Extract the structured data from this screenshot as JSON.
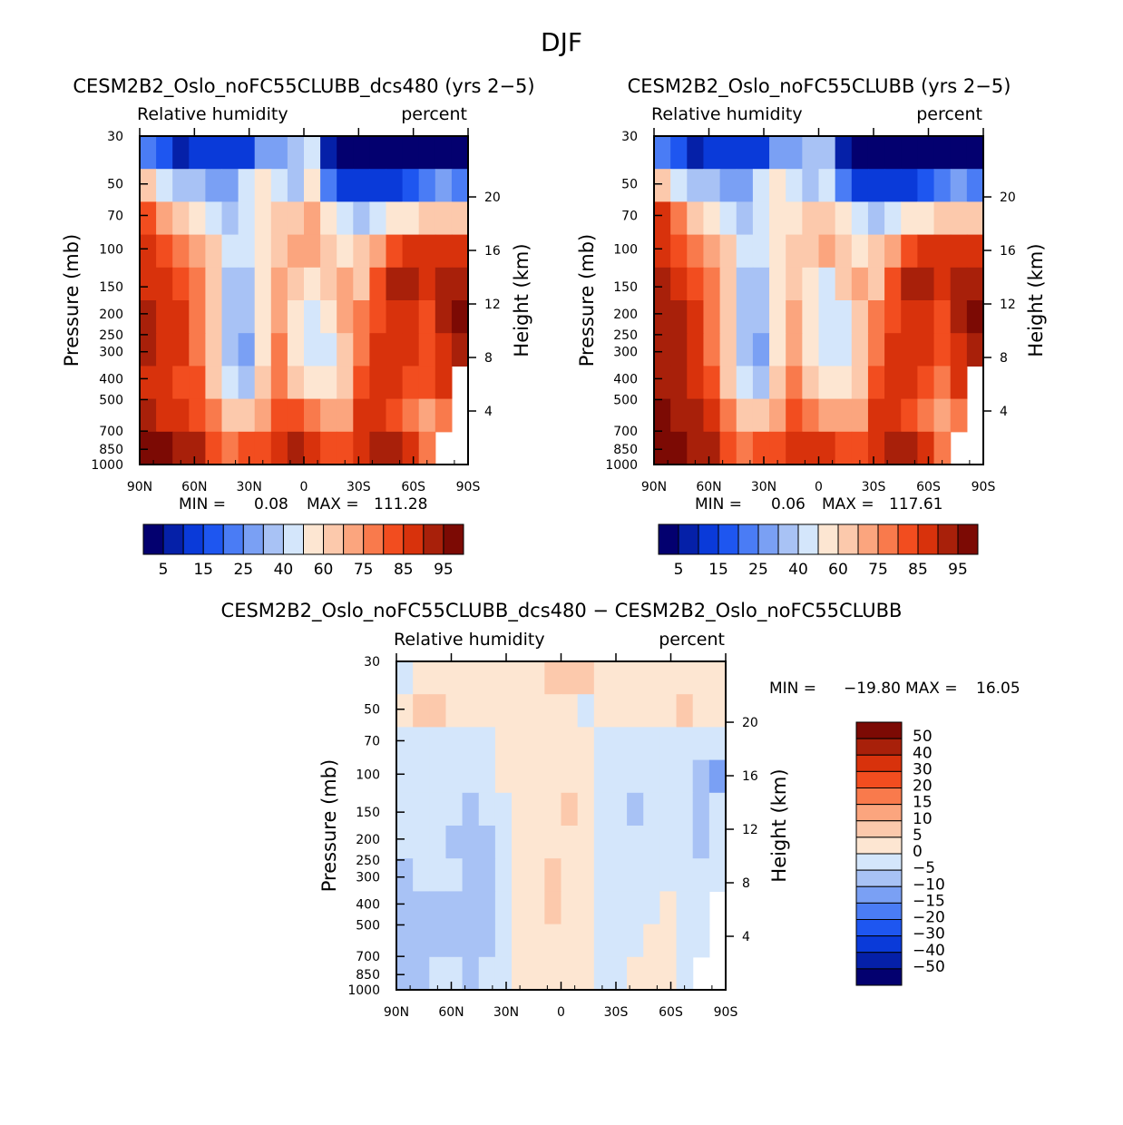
{
  "page": {
    "title": "DJF"
  },
  "chart_data": [
    {
      "type": "heatmap",
      "title": "CESM2B2_Oslo_noFC55CLUBB_dcs480 (yrs 2−5)",
      "variable": "Relative humidity",
      "units": "percent",
      "ylabel": "Pressure (mb)",
      "ylabel2": "Height (km)",
      "x_ticks": [
        "90N",
        "60N",
        "30N",
        "0",
        "30S",
        "60S",
        "90S"
      ],
      "y_ticks": [
        "30",
        "50",
        "70",
        "100",
        "150",
        "200",
        "250",
        "300",
        "400",
        "500",
        "700",
        "850",
        "1000"
      ],
      "y_values": [
        30,
        50,
        70,
        100,
        150,
        200,
        250,
        300,
        400,
        500,
        700,
        850,
        1000
      ],
      "height_ticks": [
        "20",
        "16",
        "12",
        "8",
        "4"
      ],
      "height_values": [
        20,
        16,
        12,
        8,
        4
      ],
      "ylim": [
        1000,
        30
      ],
      "stats": {
        "min_label": "MIN =",
        "min": "0.08",
        "max_label": "MAX =",
        "max": "111.28"
      },
      "colorbar_levels": [
        "5",
        "15",
        "25",
        "40",
        "60",
        "75",
        "85",
        "95"
      ],
      "field": [
        [
          22,
          15,
          8,
          12,
          10,
          10,
          12,
          25,
          28,
          30,
          40,
          5,
          3,
          3,
          2,
          2,
          3,
          3,
          3,
          2
        ],
        [
          60,
          45,
          35,
          30,
          28,
          25,
          40,
          55,
          45,
          35,
          50,
          20,
          10,
          12,
          10,
          12,
          15,
          20,
          25,
          22
        ],
        [
          80,
          70,
          60,
          50,
          40,
          30,
          40,
          55,
          60,
          65,
          70,
          55,
          40,
          35,
          40,
          50,
          55,
          60,
          65,
          62
        ],
        [
          85,
          80,
          75,
          70,
          60,
          45,
          40,
          55,
          65,
          70,
          72,
          65,
          55,
          60,
          70,
          80,
          85,
          88,
          85,
          85
        ],
        [
          88,
          86,
          82,
          75,
          60,
          35,
          35,
          55,
          70,
          60,
          50,
          65,
          70,
          68,
          80,
          90,
          92,
          85,
          90,
          90
        ],
        [
          90,
          88,
          85,
          78,
          60,
          35,
          30,
          55,
          72,
          55,
          40,
          50,
          70,
          75,
          82,
          88,
          86,
          80,
          92,
          95
        ],
        [
          90,
          88,
          85,
          78,
          60,
          35,
          28,
          55,
          75,
          58,
          42,
          48,
          68,
          78,
          85,
          86,
          85,
          82,
          88,
          90
        ],
        [
          88,
          86,
          84,
          80,
          65,
          42,
          38,
          60,
          78,
          65,
          55,
          58,
          65,
          82,
          88,
          85,
          82,
          80,
          85,
          null
        ],
        [
          90,
          88,
          86,
          84,
          75,
          65,
          60,
          72,
          82,
          80,
          75,
          70,
          72,
          86,
          88,
          84,
          78,
          70,
          75,
          null
        ],
        [
          98,
          96,
          92,
          90,
          82,
          78,
          80,
          84,
          88,
          90,
          88,
          82,
          80,
          88,
          92,
          90,
          85,
          78,
          null,
          null
        ]
      ]
    },
    {
      "type": "heatmap",
      "title": "CESM2B2_Oslo_noFC55CLUBB (yrs 2−5)",
      "variable": "Relative humidity",
      "units": "percent",
      "ylabel": "Pressure (mb)",
      "ylabel2": "Height (km)",
      "x_ticks": [
        "90N",
        "60N",
        "30N",
        "0",
        "30S",
        "60S",
        "90S"
      ],
      "y_ticks": [
        "30",
        "50",
        "70",
        "100",
        "150",
        "200",
        "250",
        "300",
        "400",
        "500",
        "700",
        "850",
        "1000"
      ],
      "y_values": [
        30,
        50,
        70,
        100,
        150,
        200,
        250,
        300,
        400,
        500,
        700,
        850,
        1000
      ],
      "height_ticks": [
        "20",
        "16",
        "12",
        "8",
        "4"
      ],
      "height_values": [
        20,
        16,
        12,
        8,
        4
      ],
      "ylim": [
        1000,
        30
      ],
      "stats": {
        "min_label": "MIN =",
        "min": "0.06",
        "max_label": "MAX =",
        "max": "117.61"
      },
      "colorbar_levels": [
        "5",
        "15",
        "25",
        "40",
        "60",
        "75",
        "85",
        "95"
      ],
      "field": [
        [
          22,
          15,
          8,
          12,
          10,
          10,
          12,
          25,
          28,
          30,
          35,
          5,
          3,
          3,
          2,
          2,
          3,
          3,
          3,
          2
        ],
        [
          62,
          45,
          35,
          30,
          28,
          25,
          40,
          55,
          45,
          35,
          45,
          20,
          10,
          12,
          10,
          12,
          15,
          20,
          25,
          22
        ],
        [
          85,
          75,
          62,
          52,
          42,
          32,
          40,
          55,
          58,
          62,
          68,
          52,
          40,
          35,
          40,
          50,
          55,
          60,
          65,
          62
        ],
        [
          88,
          84,
          78,
          72,
          60,
          45,
          40,
          55,
          62,
          68,
          70,
          62,
          55,
          60,
          72,
          82,
          86,
          88,
          86,
          88
        ],
        [
          90,
          88,
          84,
          76,
          60,
          35,
          35,
          55,
          68,
          58,
          48,
          62,
          70,
          68,
          82,
          90,
          92,
          86,
          90,
          92
        ],
        [
          92,
          90,
          86,
          78,
          60,
          35,
          30,
          55,
          70,
          55,
          40,
          48,
          68,
          75,
          82,
          88,
          86,
          82,
          92,
          96
        ],
        [
          92,
          90,
          86,
          78,
          60,
          35,
          28,
          55,
          72,
          56,
          42,
          46,
          66,
          78,
          85,
          86,
          85,
          82,
          88,
          90
        ],
        [
          92,
          90,
          86,
          82,
          66,
          42,
          38,
          60,
          76,
          64,
          55,
          56,
          64,
          82,
          88,
          85,
          82,
          78,
          85,
          null
        ],
        [
          96,
          94,
          90,
          86,
          76,
          66,
          60,
          72,
          80,
          78,
          74,
          70,
          72,
          86,
          88,
          84,
          78,
          70,
          75,
          null
        ],
        [
          100,
          98,
          94,
          90,
          82,
          78,
          80,
          84,
          86,
          88,
          86,
          82,
          80,
          88,
          92,
          90,
          85,
          78,
          null,
          null
        ]
      ]
    },
    {
      "type": "heatmap",
      "title": "CESM2B2_Oslo_noFC55CLUBB_dcs480 − CESM2B2_Oslo_noFC55CLUBB",
      "variable": "Relative humidity",
      "units": "percent",
      "ylabel": "Pressure (mb)",
      "ylabel2": "Height (km)",
      "x_ticks": [
        "90N",
        "60N",
        "30N",
        "0",
        "30S",
        "60S",
        "90S"
      ],
      "y_ticks": [
        "30",
        "50",
        "70",
        "100",
        "150",
        "200",
        "250",
        "300",
        "400",
        "500",
        "700",
        "850",
        "1000"
      ],
      "y_values": [
        30,
        50,
        70,
        100,
        150,
        200,
        250,
        300,
        400,
        500,
        700,
        850,
        1000
      ],
      "height_ticks": [
        "20",
        "16",
        "12",
        "8",
        "4"
      ],
      "height_values": [
        20,
        16,
        12,
        8,
        4
      ],
      "ylim": [
        1000,
        30
      ],
      "stats": {
        "min_label": "MIN =",
        "min": "−19.80",
        "max_label": "MAX =",
        "max": "16.05"
      },
      "colorbar_levels": [
        "50",
        "40",
        "30",
        "20",
        "15",
        "10",
        "5",
        "0",
        "−5",
        "−10",
        "−15",
        "−20",
        "−30",
        "−40",
        "−50"
      ],
      "field": [
        [
          -1,
          1,
          2,
          2,
          2,
          2,
          1,
          1,
          2,
          5,
          6,
          5,
          1,
          1,
          1,
          1,
          1,
          1,
          1,
          1
        ],
        [
          4,
          5,
          5,
          4,
          3,
          3,
          3,
          3,
          2,
          1,
          1,
          -3,
          3,
          3,
          4,
          4,
          4,
          6,
          3,
          2
        ],
        [
          -3,
          -2,
          -1,
          -2,
          -1,
          -1,
          1,
          1,
          1,
          1,
          1,
          1,
          -2,
          -2,
          -2,
          -3,
          -1,
          -2,
          -4,
          -3
        ],
        [
          -4,
          -3,
          -2,
          -3,
          -3,
          -1,
          1,
          1,
          1,
          1,
          1,
          1,
          -2,
          -3,
          -3,
          -3,
          -3,
          -4,
          -8,
          -12
        ],
        [
          -3,
          -4,
          -3,
          -5,
          -6,
          -4,
          -1,
          1,
          1,
          1,
          6,
          1,
          -2,
          -5,
          -6,
          -4,
          -3,
          -4,
          -7,
          -4
        ],
        [
          -5,
          -4,
          -5,
          -6,
          -8,
          -7,
          -3,
          1,
          1,
          1,
          4,
          1,
          -2,
          -3,
          -3,
          -3,
          -2,
          -5,
          -6,
          -4
        ],
        [
          -6,
          -5,
          -5,
          -5,
          -7,
          -8,
          -3,
          1,
          2,
          6,
          1,
          1,
          -2,
          -3,
          -3,
          -3,
          -2,
          -3,
          -4,
          -2
        ],
        [
          -6,
          -7,
          -6,
          -6,
          -7,
          -7,
          -3,
          1,
          1,
          5,
          1,
          1,
          -1,
          -2,
          -3,
          -1,
          1,
          -2,
          -2,
          null
        ],
        [
          -7,
          -6,
          -6,
          -6,
          -7,
          -6,
          -4,
          1,
          1,
          1,
          1,
          1,
          -3,
          -2,
          -3,
          1,
          1,
          -2,
          -1,
          null
        ],
        [
          -6,
          -6,
          -5,
          -5,
          -6,
          -5,
          -3,
          1,
          1,
          1,
          1,
          1,
          -1,
          -1,
          1,
          1,
          1,
          -2,
          null,
          null
        ]
      ]
    }
  ],
  "colors": {
    "abs_levels": [
      5,
      10,
      15,
      20,
      25,
      30,
      40,
      50,
      60,
      70,
      75,
      80,
      85,
      90,
      95
    ],
    "abs_palette": [
      "#03006f",
      "#0520a8",
      "#0a3ad9",
      "#1e56f0",
      "#4a7cf5",
      "#7aa0f4",
      "#a8c2f5",
      "#d4e6fb",
      "#fde6d2",
      "#fcc9ac",
      "#fba57e",
      "#f97a4c",
      "#f24d1f",
      "#d8320c",
      "#a8200a",
      "#7c0a04"
    ],
    "diff_levels": [
      -50,
      -40,
      -30,
      -20,
      -15,
      -10,
      -5,
      0,
      5,
      10,
      15,
      20,
      30,
      40,
      50
    ],
    "diff_palette": [
      "#03006f",
      "#0520a8",
      "#0a3ad9",
      "#1e56f0",
      "#4a7cf5",
      "#7aa0f4",
      "#a8c2f5",
      "#d4e6fb",
      "#fde6d2",
      "#fcc9ac",
      "#fba57e",
      "#f97a4c",
      "#f24d1f",
      "#d8320c",
      "#a8200a",
      "#7c0a04"
    ]
  }
}
